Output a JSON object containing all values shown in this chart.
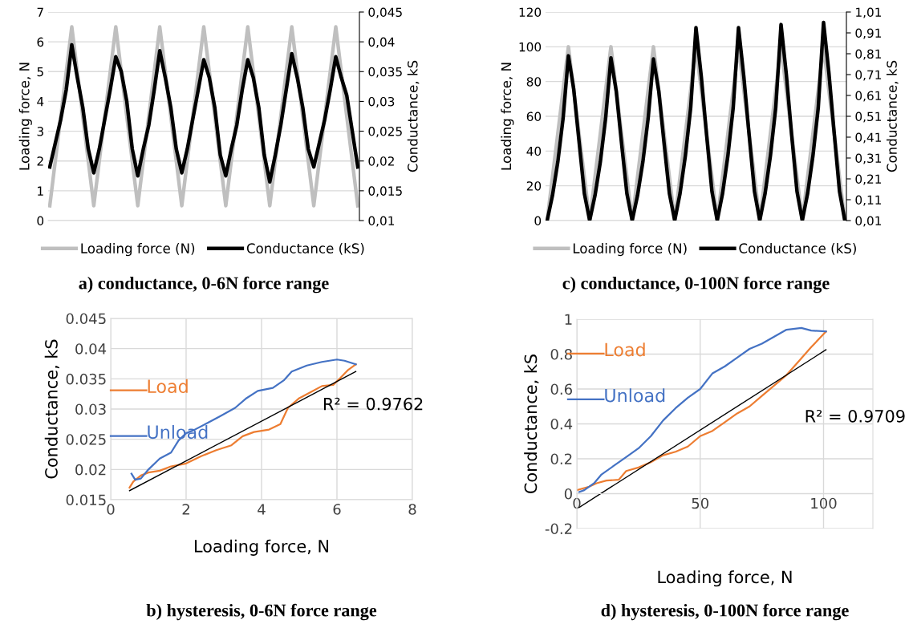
{
  "chart_data": [
    {
      "type": "line",
      "title": "a) conductance, 0-6N force range",
      "ylabel": "Loading force, N",
      "y2label": "Conductance, kS",
      "categories": [
        null,
        null,
        null,
        null,
        null,
        null,
        null,
        null,
        null,
        null,
        null,
        null,
        null,
        null,
        null,
        null,
        null,
        null,
        null,
        null,
        null,
        null,
        null,
        null,
        null,
        null,
        null,
        null,
        null,
        null,
        null,
        null,
        null,
        null,
        null,
        null,
        null,
        null,
        null,
        null,
        null,
        null,
        null,
        null,
        null,
        null,
        null,
        null,
        null,
        null,
        null,
        null,
        null,
        null,
        null,
        null,
        null
      ],
      "ylim": [
        0,
        7
      ],
      "yticks": [
        0,
        1,
        2,
        3,
        4,
        5,
        6,
        7
      ],
      "y2lim": [
        0.01,
        0.045
      ],
      "y2ticks": [
        {
          "value": 0.01,
          "label": "0,01"
        },
        {
          "value": 0.015,
          "label": "0,015"
        },
        {
          "value": 0.02,
          "label": "0,02"
        },
        {
          "value": 0.025,
          "label": "0,025"
        },
        {
          "value": 0.03,
          "label": "0,03"
        },
        {
          "value": 0.035,
          "label": "0,035"
        },
        {
          "value": 0.04,
          "label": "0,04"
        },
        {
          "value": 0.045,
          "label": "0,045"
        }
      ],
      "grid": "y",
      "legend": "bottom",
      "series": [
        {
          "name": "Loading force (N)",
          "color": "#bfbfbf",
          "values": [
            0.5,
            2,
            3.5,
            5,
            6.5,
            5,
            3.5,
            2,
            0.5,
            2,
            3.5,
            5,
            6.5,
            5,
            3.5,
            2,
            0.5,
            2,
            3.5,
            5,
            6.5,
            5,
            3.5,
            2,
            0.5,
            2,
            3.5,
            5,
            6.5,
            5,
            3.5,
            2,
            0.5,
            2,
            3.5,
            5,
            6.5,
            5,
            3.5,
            2,
            0.5,
            2,
            3.5,
            5,
            6.5,
            5,
            3.5,
            2,
            0.5,
            2,
            3.5,
            5,
            6.5,
            5,
            3.5,
            2,
            0.5
          ]
        },
        {
          "name": "Conductance (kS)",
          "color": "#000000",
          "axis": "y2",
          "values": [
            0.019,
            0.023,
            0.027,
            0.032,
            0.0395,
            0.034,
            0.029,
            0.022,
            0.018,
            0.022,
            0.027,
            0.032,
            0.0375,
            0.035,
            0.03,
            0.022,
            0.0175,
            0.022,
            0.026,
            0.032,
            0.0385,
            0.034,
            0.029,
            0.022,
            0.018,
            0.022,
            0.027,
            0.032,
            0.037,
            0.034,
            0.029,
            0.021,
            0.0175,
            0.022,
            0.026,
            0.032,
            0.037,
            0.034,
            0.029,
            0.021,
            0.0165,
            0.021,
            0.026,
            0.032,
            0.038,
            0.034,
            0.029,
            0.022,
            0.019,
            0.023,
            0.027,
            0.032,
            0.0375,
            0.034,
            0.031,
            0.025,
            0.019
          ]
        }
      ]
    },
    {
      "type": "line",
      "title": "c) conductance, 0-100N force range",
      "ylabel": "Loading force, N",
      "y2label": "Conductance, kS",
      "categories": [
        null,
        null,
        null,
        null,
        null,
        null,
        null,
        null,
        null,
        null,
        null,
        null,
        null,
        null,
        null,
        null,
        null,
        null,
        null,
        null,
        null,
        null,
        null,
        null,
        null,
        null,
        null,
        null,
        null,
        null,
        null,
        null,
        null,
        null,
        null,
        null,
        null,
        null,
        null,
        null,
        null,
        null,
        null,
        null,
        null,
        null,
        null,
        null,
        null,
        null,
        null,
        null,
        null,
        null,
        null,
        null,
        null
      ],
      "ylim": [
        0,
        120
      ],
      "yticks": [
        0,
        20,
        40,
        60,
        80,
        100,
        120
      ],
      "y2lim": [
        0.01,
        1.01
      ],
      "y2ticks": [
        {
          "value": 0.01,
          "label": "0,01"
        },
        {
          "value": 0.11,
          "label": "0,11"
        },
        {
          "value": 0.21,
          "label": "0,21"
        },
        {
          "value": 0.31,
          "label": "0,31"
        },
        {
          "value": 0.41,
          "label": "0,41"
        },
        {
          "value": 0.51,
          "label": "0,51"
        },
        {
          "value": 0.61,
          "label": "0,61"
        },
        {
          "value": 0.71,
          "label": "0,71"
        },
        {
          "value": 0.81,
          "label": "0,81"
        },
        {
          "value": 0.91,
          "label": "0,91"
        },
        {
          "value": 1.01,
          "label": "1,01"
        }
      ],
      "grid": "y",
      "legend": "bottom",
      "series": [
        {
          "name": "Loading force (N)",
          "color": "#bfbfbf",
          "values": [
            0,
            25,
            50,
            75,
            100,
            75,
            50,
            25,
            0,
            25,
            50,
            75,
            100,
            75,
            50,
            25,
            0,
            25,
            50,
            75,
            100,
            75,
            50,
            25,
            0,
            25,
            50,
            75,
            100,
            75,
            50,
            25,
            0,
            25,
            50,
            75,
            100,
            75,
            50,
            25,
            0,
            25,
            50,
            75,
            100,
            75,
            50,
            25,
            0,
            25,
            50,
            75,
            100,
            75,
            50,
            25,
            0
          ]
        },
        {
          "name": "Conductance (kS)",
          "color": "#000000",
          "axis": "y2",
          "values": [
            0.01,
            0.13,
            0.29,
            0.5,
            0.8,
            0.64,
            0.39,
            0.14,
            0.01,
            0.13,
            0.29,
            0.5,
            0.79,
            0.63,
            0.38,
            0.14,
            0.01,
            0.13,
            0.29,
            0.5,
            0.785,
            0.63,
            0.38,
            0.14,
            0.01,
            0.14,
            0.32,
            0.55,
            0.935,
            0.7,
            0.42,
            0.15,
            0.01,
            0.14,
            0.32,
            0.55,
            0.935,
            0.7,
            0.42,
            0.15,
            0.01,
            0.14,
            0.32,
            0.55,
            0.95,
            0.71,
            0.42,
            0.15,
            0.01,
            0.14,
            0.32,
            0.55,
            0.96,
            0.72,
            0.43,
            0.15,
            0.01
          ]
        }
      ]
    },
    {
      "type": "line",
      "title": "b) hysteresis, 0-6N force range",
      "xlabel": "Loading force, N",
      "ylabel": "Conductance, kS",
      "xlim": [
        0,
        8
      ],
      "xticks": [
        0,
        2,
        4,
        6,
        8
      ],
      "ylim": [
        0.015,
        0.045
      ],
      "yticks": [
        0.015,
        0.02,
        0.025,
        0.03,
        0.035,
        0.04,
        0.045
      ],
      "grid": true,
      "legend": "left",
      "series": [
        {
          "name": "Load",
          "color": "#ed7d31",
          "x": [
            0.5,
            0.6,
            0.8,
            1.0,
            1.3,
            1.6,
            2.0,
            2.4,
            2.8,
            3.2,
            3.5,
            3.8,
            4.2,
            4.5,
            4.7,
            5.0,
            5.3,
            5.6,
            5.9,
            6.1,
            6.3,
            6.5
          ],
          "values": [
            0.017,
            0.018,
            0.019,
            0.0195,
            0.0198,
            0.0205,
            0.021,
            0.0222,
            0.0232,
            0.024,
            0.0255,
            0.0262,
            0.0266,
            0.0275,
            0.0302,
            0.0318,
            0.0328,
            0.0338,
            0.034,
            0.0352,
            0.0365,
            0.0374
          ]
        },
        {
          "name": "Unload",
          "color": "#4472c4",
          "x": [
            6.5,
            6.2,
            6.0,
            5.6,
            5.2,
            4.8,
            4.6,
            4.3,
            3.9,
            3.6,
            3.3,
            2.9,
            2.6,
            2.2,
            2.0,
            1.8,
            1.6,
            1.3,
            1.0,
            0.8,
            0.65,
            0.55
          ],
          "values": [
            0.0374,
            0.038,
            0.0382,
            0.0378,
            0.0372,
            0.0362,
            0.0348,
            0.0335,
            0.033,
            0.0318,
            0.0302,
            0.0288,
            0.0278,
            0.0265,
            0.026,
            0.0248,
            0.0228,
            0.0218,
            0.02,
            0.0185,
            0.0183,
            0.0193
          ]
        },
        {
          "type": "line",
          "color": "#000000",
          "x": [
            0.5,
            6.5
          ],
          "values": [
            0.0165,
            0.0362
          ]
        }
      ],
      "annotations": [
        "R² = 0.9762"
      ]
    },
    {
      "type": "line",
      "title": "d) hysteresis, 0-100N force range",
      "xlabel": "Loading force, N",
      "ylabel": "Conductance, kS",
      "xlim": [
        0,
        120
      ],
      "xticks": [
        0,
        50,
        100
      ],
      "ylim": [
        -0.2,
        1
      ],
      "yticks": [
        -0.2,
        0,
        0.2,
        0.4,
        0.6,
        0.8,
        1
      ],
      "grid": true,
      "legend": "left",
      "series": [
        {
          "name": "Load",
          "color": "#ed7d31",
          "x": [
            0,
            5,
            8,
            12,
            17,
            20,
            25,
            30,
            35,
            40,
            45,
            50,
            55,
            60,
            65,
            70,
            75,
            80,
            85,
            90,
            95,
            101
          ],
          "values": [
            0.02,
            0.04,
            0.06,
            0.075,
            0.08,
            0.13,
            0.15,
            0.18,
            0.22,
            0.24,
            0.27,
            0.33,
            0.36,
            0.41,
            0.46,
            0.5,
            0.56,
            0.62,
            0.68,
            0.76,
            0.84,
            0.93
          ]
        },
        {
          "name": "Unload",
          "color": "#4472c4",
          "x": [
            101,
            95,
            91,
            85,
            80,
            75,
            70,
            65,
            60,
            55,
            50,
            45,
            40,
            35,
            30,
            25,
            20,
            15,
            10,
            7,
            3,
            1
          ],
          "values": [
            0.93,
            0.935,
            0.95,
            0.94,
            0.9,
            0.86,
            0.83,
            0.78,
            0.73,
            0.69,
            0.6,
            0.55,
            0.49,
            0.42,
            0.33,
            0.26,
            0.21,
            0.16,
            0.11,
            0.06,
            0.02,
            0.01
          ]
        },
        {
          "type": "line",
          "color": "#000000",
          "x": [
            1,
            101
          ],
          "values": [
            -0.078,
            0.825
          ]
        }
      ],
      "annotations": [
        "R² = 0.9709"
      ]
    }
  ]
}
